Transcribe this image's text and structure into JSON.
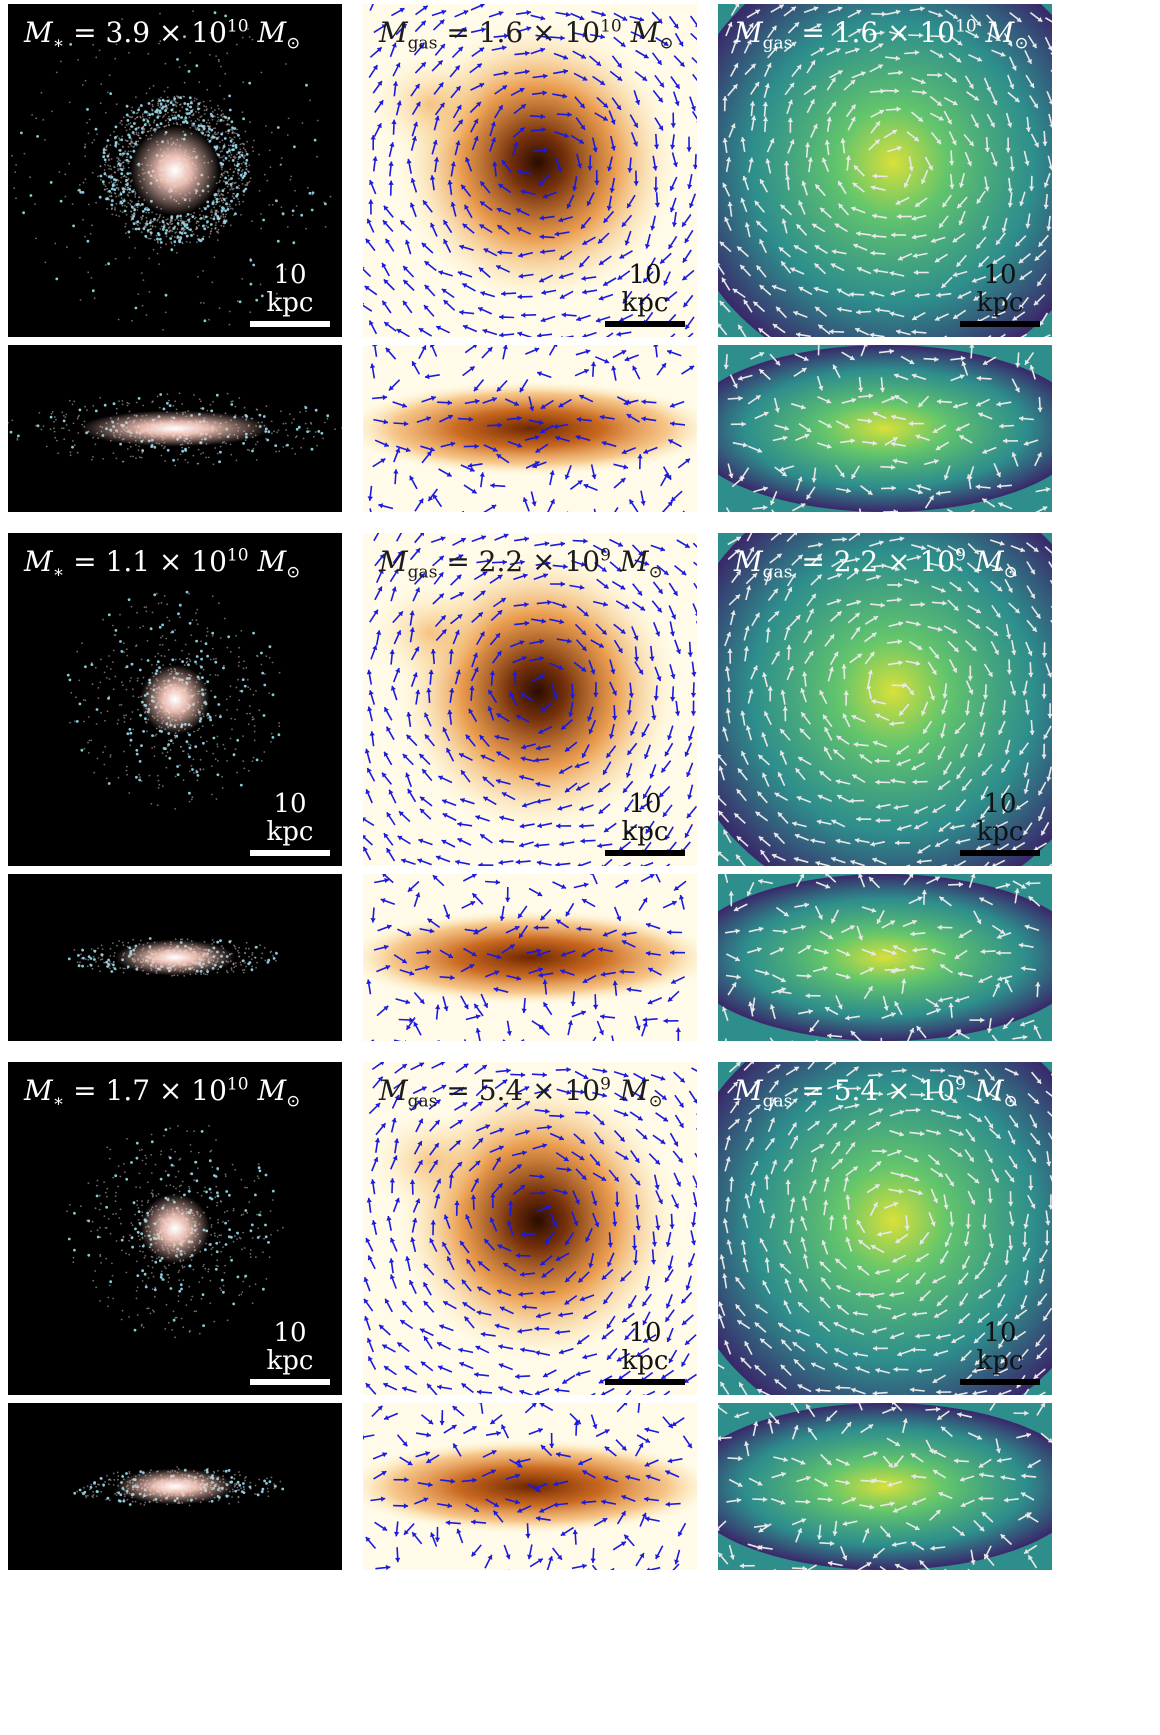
{
  "figure": {
    "scale_bar_text": "10 kpc",
    "rows": [
      {
        "stellar_mass": "3.9 × 10",
        "stellar_exp": "10",
        "gas_mass": "1.6 × 10",
        "gas_exp": "10",
        "stellar_style": "ring",
        "gas_style": "spiral"
      },
      {
        "stellar_mass": "1.1 × 10",
        "stellar_exp": "10",
        "gas_mass": "2.2 × 10",
        "gas_exp": "9",
        "stellar_style": "compact",
        "gas_style": "spiral"
      },
      {
        "stellar_mass": "1.7 × 10",
        "stellar_exp": "10",
        "gas_mass": "5.4 × 10",
        "gas_exp": "9",
        "stellar_style": "compact",
        "gas_style": "spiral"
      }
    ],
    "colors": {
      "stellar_background": "#000000",
      "stellar_core": "#f2c4b8",
      "stellar_young_stars": "#8fd4e6",
      "gas_density_low": "#fffbe8",
      "gas_density_high": "#6e2600",
      "gas_arrows": "#1a1ae0",
      "vel_low": "#3b1b66",
      "vel_mid": "#2e8e8c",
      "vel_high": "#d9e03a",
      "vel_arrows": "#e8e8e8"
    }
  }
}
